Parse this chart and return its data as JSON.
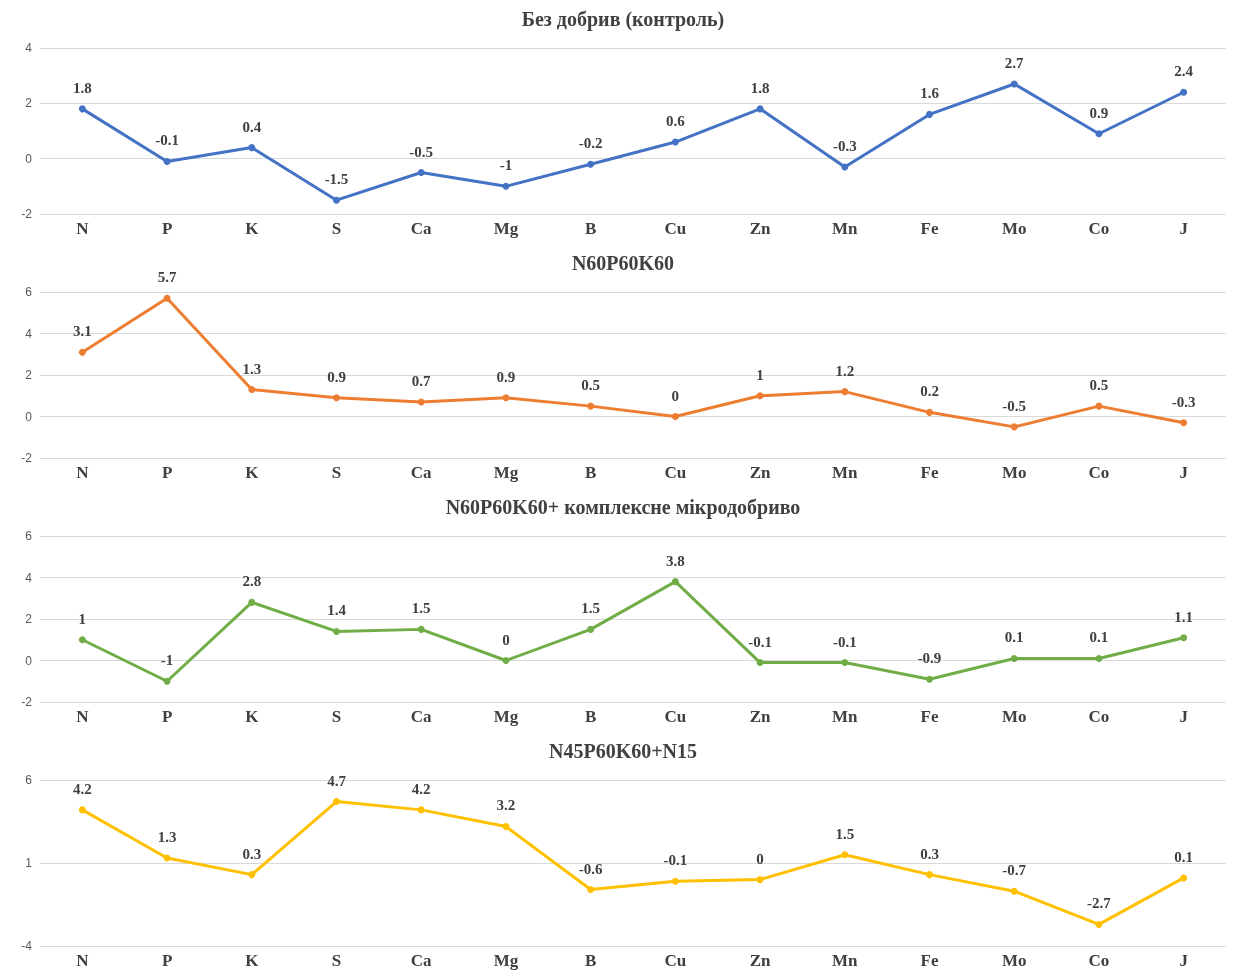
{
  "chart_data": [
    {
      "type": "line",
      "title": "Без добрив (контроль)",
      "categories": [
        "N",
        "P",
        "K",
        "S",
        "Ca",
        "Mg",
        "B",
        "Cu",
        "Zn",
        "Mn",
        "Fe",
        "Mo",
        "Co",
        "J"
      ],
      "series": [
        {
          "color": "#4472c4",
          "values": [
            1.8,
            -0.1,
            0.4,
            -1.5,
            -0.5,
            -1,
            -0.2,
            0.6,
            1.8,
            -0.3,
            1.6,
            2.7,
            0.9,
            2.4
          ]
        }
      ],
      "ylim": [
        -2,
        4
      ],
      "yticks": [
        -2,
        0,
        2,
        4
      ],
      "grid": "y",
      "data_labels": true,
      "marker": "circle"
    },
    {
      "type": "line",
      "title": "N60P60K60",
      "categories": [
        "N",
        "P",
        "K",
        "S",
        "Ca",
        "Mg",
        "B",
        "Cu",
        "Zn",
        "Mn",
        "Fe",
        "Mo",
        "Co",
        "J"
      ],
      "series": [
        {
          "color": "#ed7d31",
          "values": [
            3.1,
            5.7,
            1.3,
            0.9,
            0.7,
            0.9,
            0.5,
            0,
            1,
            1.2,
            0.2,
            -0.5,
            0.5,
            -0.3
          ]
        }
      ],
      "ylim": [
        -2,
        6
      ],
      "yticks": [
        -2,
        0,
        2,
        4,
        6
      ],
      "grid": "y",
      "data_labels": true,
      "marker": "circle"
    },
    {
      "type": "line",
      "title": "N60P60K60+ комплексне мікродобриво",
      "categories": [
        "N",
        "P",
        "K",
        "S",
        "Ca",
        "Mg",
        "B",
        "Cu",
        "Zn",
        "Mn",
        "Fe",
        "Mo",
        "Co",
        "J"
      ],
      "series": [
        {
          "color": "#70ad47",
          "values": [
            1,
            -1,
            2.8,
            1.4,
            1.5,
            0,
            1.5,
            3.8,
            -0.1,
            -0.1,
            -0.9,
            0.1,
            0.1,
            1.1
          ]
        }
      ],
      "ylim": [
        -2,
        6
      ],
      "yticks": [
        -2,
        0,
        2,
        4,
        6
      ],
      "grid": "y",
      "data_labels": true,
      "marker": "circle"
    },
    {
      "type": "line",
      "title": "N45P60K60+N15",
      "categories": [
        "N",
        "P",
        "K",
        "S",
        "Ca",
        "Mg",
        "B",
        "Cu",
        "Zn",
        "Mn",
        "Fe",
        "Mo",
        "Co",
        "J"
      ],
      "series": [
        {
          "color": "#ffc000",
          "values": [
            4.2,
            1.3,
            0.3,
            4.7,
            4.2,
            3.2,
            -0.6,
            -0.1,
            0,
            1.5,
            0.3,
            -0.7,
            -2.7,
            0.1
          ]
        }
      ],
      "ylim": [
        -4,
        6
      ],
      "yticks": [
        -4,
        1,
        6
      ],
      "grid": "y",
      "data_labels": true,
      "marker": "circle"
    }
  ]
}
